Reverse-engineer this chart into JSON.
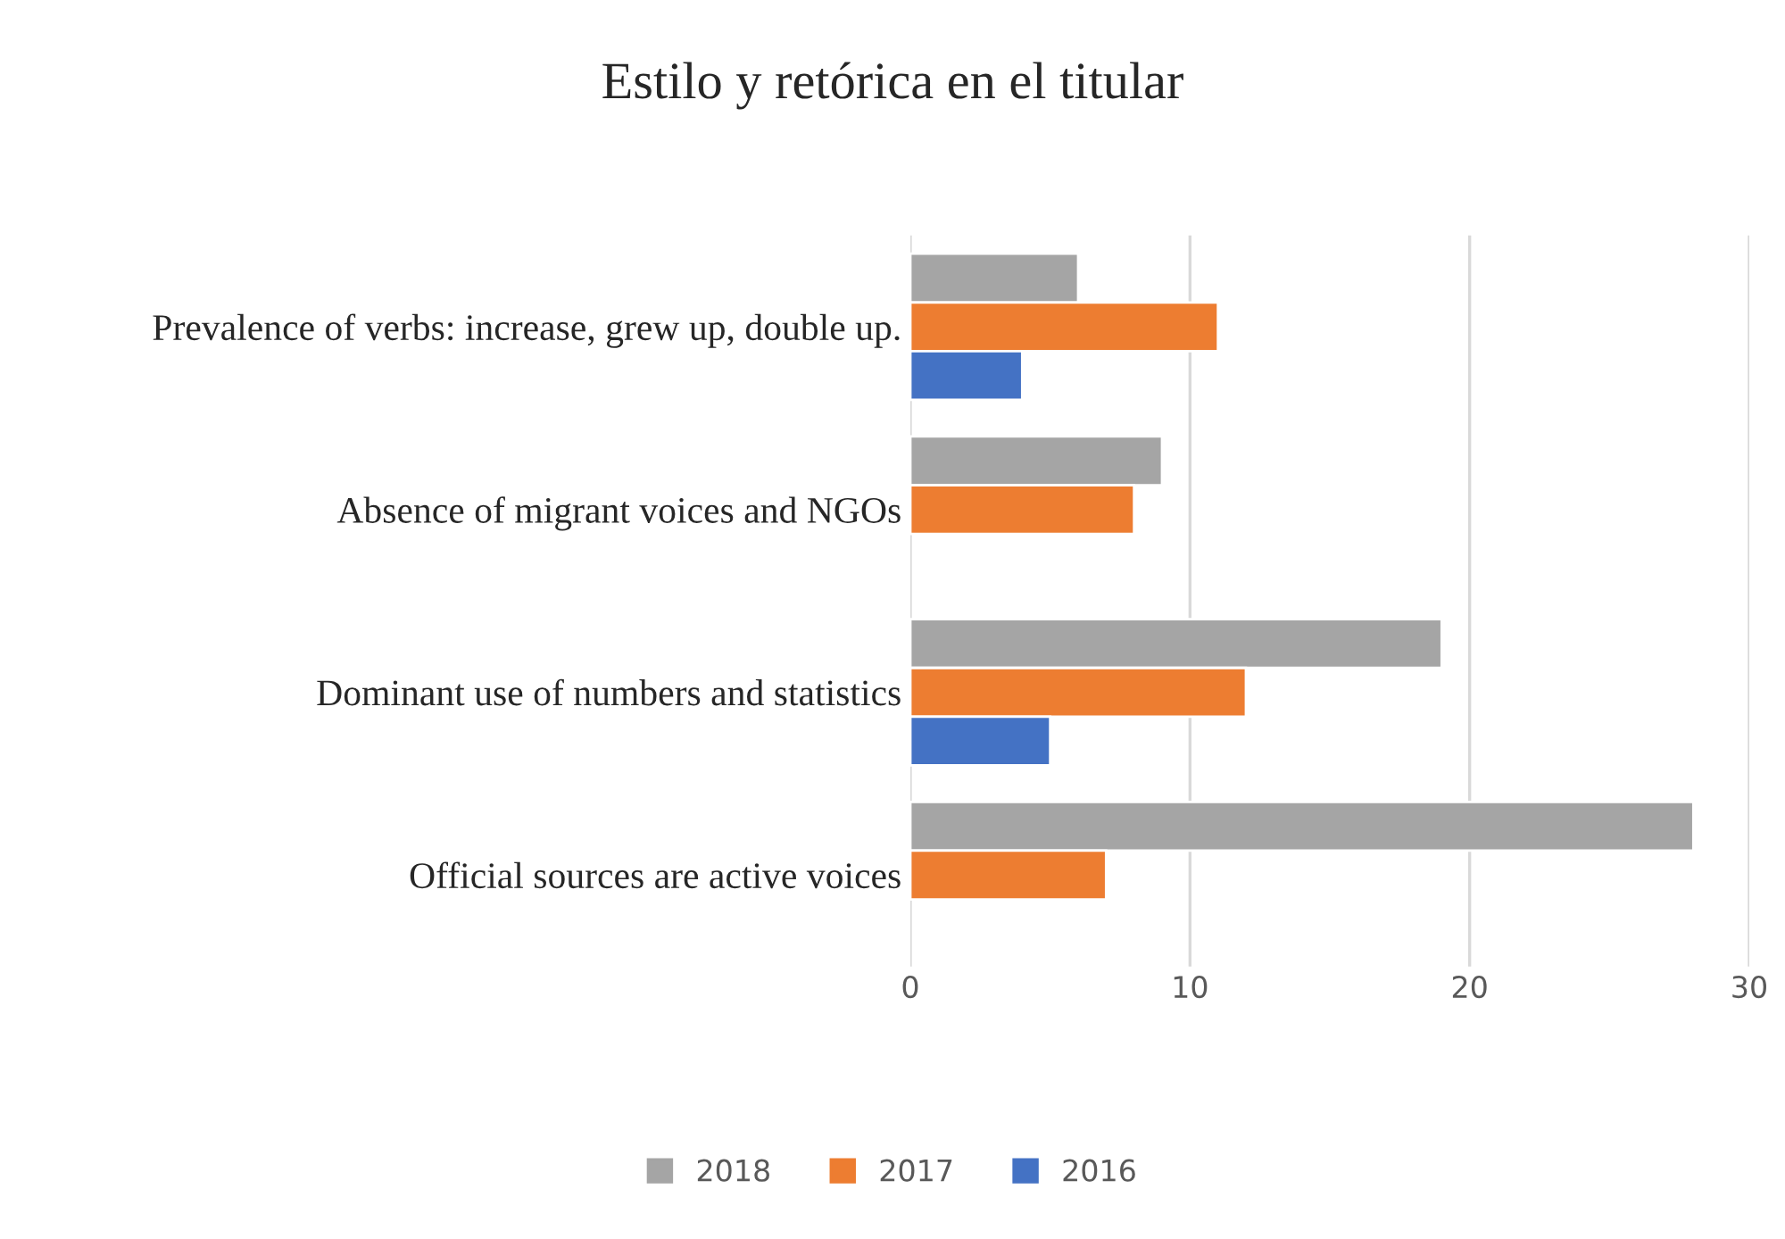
{
  "chart_data": {
    "type": "bar",
    "orientation": "horizontal",
    "title": "Estilo y retórica en el titular",
    "categories": [
      "Prevalence of verbs: increase, grew up, double up.",
      "Absence of migrant voices and NGOs",
      "Dominant use of numbers and statistics",
      "Official sources are active voices"
    ],
    "series": [
      {
        "name": "2018",
        "color": "#a5a5a5",
        "values": [
          6,
          9,
          19,
          28
        ]
      },
      {
        "name": "2017",
        "color": "#ed7d31",
        "values": [
          11,
          8,
          12,
          7
        ]
      },
      {
        "name": "2016",
        "color": "#4472c4",
        "values": [
          4,
          null,
          5,
          null
        ]
      }
    ],
    "xlim": [
      0,
      30
    ],
    "xticks": [
      0,
      10,
      20,
      30
    ],
    "grid": "x",
    "legend": "bottom"
  }
}
